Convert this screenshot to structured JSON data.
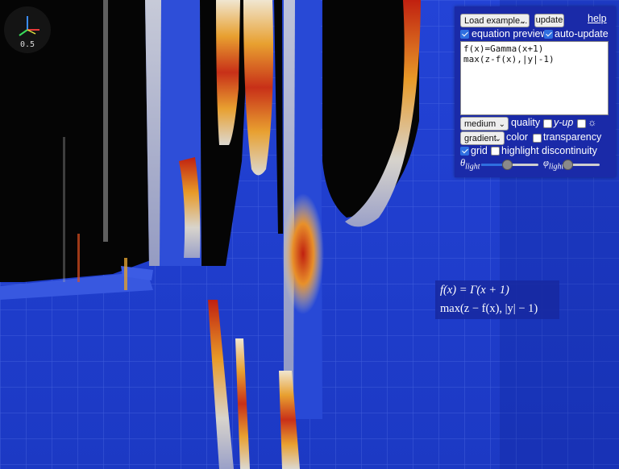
{
  "gizmo": {
    "value": "0.5"
  },
  "toolbar": {
    "example_select": "Load example...",
    "update_label": "update",
    "help_label": "help"
  },
  "options": {
    "equation_preview": {
      "label": "equation preview",
      "checked": true
    },
    "auto_update": {
      "label": "auto-update",
      "checked": true
    }
  },
  "editor": {
    "lines": [
      "f(x)=Gamma(x+1)",
      "max(z-f(x),|y|-1)"
    ]
  },
  "render": {
    "quality_select": "medium",
    "quality_label": "quality",
    "y_up": {
      "label": "y-up",
      "checked": false
    },
    "light_toggle": {
      "label": "☼",
      "checked": false
    },
    "color_select": "gradient",
    "color_label": "color",
    "transparency": {
      "label": "transparency",
      "checked": false
    },
    "grid": {
      "label": "grid",
      "checked": true
    },
    "highlight_discontinuity": {
      "label": "highlight discontinuity",
      "checked": false
    },
    "theta_light": {
      "label": "θ",
      "sub": "light",
      "value": 0.45
    },
    "phi_light": {
      "label": "φ",
      "sub": "light",
      "value": 0.05
    }
  },
  "preview": {
    "line1": "f(x) = Γ(x + 1)",
    "line2": "max(z − f(x), |y| − 1)"
  },
  "colors": {
    "background": "#1f3fc8",
    "panel": "#1a2aa8",
    "accent": "#2f6fe0"
  }
}
